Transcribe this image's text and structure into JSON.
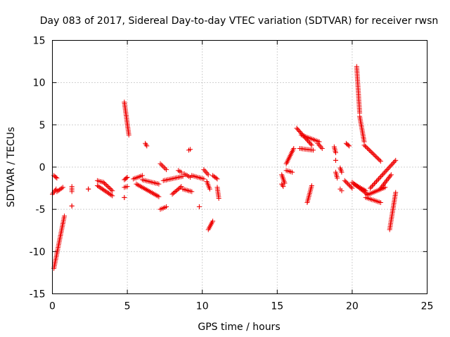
{
  "chart_data": {
    "type": "scatter",
    "title": "Day 083 of 2017, Sidereal Day-to-day VTEC variation (SDTVAR) for receiver rwsn",
    "xlabel": "GPS time / hours",
    "ylabel": "SDTVAR / TECUs",
    "xlim": [
      0,
      25
    ],
    "ylim": [
      -15,
      15
    ],
    "x_ticks": [
      0,
      5,
      10,
      15,
      20,
      25
    ],
    "y_ticks": [
      -15,
      -10,
      -5,
      0,
      5,
      10,
      15
    ],
    "x_tick_labels": [
      "0",
      "5",
      "10",
      "15",
      "20",
      "25"
    ],
    "y_tick_labels": [
      "-15",
      "-10",
      "-5",
      "0",
      "5",
      "10",
      "15"
    ],
    "grid": true,
    "marker": "+",
    "series_color": "#ee0000",
    "segments": [
      {
        "x0": 0.0,
        "x1": 0.25,
        "y0": -3.2,
        "y1": -2.6
      },
      {
        "x0": 0.1,
        "x1": 0.3,
        "y0": -1.0,
        "y1": -1.3
      },
      {
        "x0": 0.1,
        "x1": 0.8,
        "y0": -12.0,
        "y1": -5.8
      },
      {
        "x0": 0.3,
        "x1": 0.7,
        "y0": -2.9,
        "y1": -2.4
      },
      {
        "x0": 1.3,
        "x1": 1.3,
        "y0": -2.3,
        "y1": -2.9
      },
      {
        "x0": 1.3,
        "x1": 1.3,
        "y0": -4.6,
        "y1": -4.6
      },
      {
        "x0": 2.4,
        "x1": 2.4,
        "y0": -2.6,
        "y1": -2.6
      },
      {
        "x0": 3.0,
        "x1": 3.4,
        "y0": -1.6,
        "y1": -1.8
      },
      {
        "x0": 3.0,
        "x1": 4.0,
        "y0": -2.2,
        "y1": -3.4
      },
      {
        "x0": 3.4,
        "x1": 4.0,
        "y0": -1.8,
        "y1": -2.8
      },
      {
        "x0": 4.8,
        "x1": 5.0,
        "y0": -1.5,
        "y1": -1.2
      },
      {
        "x0": 4.8,
        "x1": 5.0,
        "y0": -2.4,
        "y1": -2.3
      },
      {
        "x0": 4.8,
        "x1": 4.8,
        "y0": -3.6,
        "y1": -3.6
      },
      {
        "x0": 4.8,
        "x1": 5.1,
        "y0": 7.7,
        "y1": 3.8
      },
      {
        "x0": 5.4,
        "x1": 6.0,
        "y0": -1.4,
        "y1": -1.0
      },
      {
        "x0": 5.6,
        "x1": 7.1,
        "y0": -2.0,
        "y1": -3.5
      },
      {
        "x0": 6.0,
        "x1": 7.1,
        "y0": -1.5,
        "y1": -2.0
      },
      {
        "x0": 6.2,
        "x1": 6.3,
        "y0": 2.8,
        "y1": 2.5
      },
      {
        "x0": 7.2,
        "x1": 7.6,
        "y0": 0.4,
        "y1": -0.3
      },
      {
        "x0": 7.2,
        "x1": 7.6,
        "y0": -5.0,
        "y1": -4.7
      },
      {
        "x0": 7.4,
        "x1": 8.7,
        "y0": -1.6,
        "y1": -1.1
      },
      {
        "x0": 8.0,
        "x1": 8.6,
        "y0": -3.2,
        "y1": -2.3
      },
      {
        "x0": 8.4,
        "x1": 8.6,
        "y0": -0.4,
        "y1": -0.6
      },
      {
        "x0": 8.7,
        "x1": 9.3,
        "y0": -2.6,
        "y1": -2.9
      },
      {
        "x0": 8.8,
        "x1": 9.2,
        "y0": -0.8,
        "y1": -1.2
      },
      {
        "x0": 9.1,
        "x1": 9.2,
        "y0": 2.0,
        "y1": 2.1
      },
      {
        "x0": 9.3,
        "x1": 10.1,
        "y0": -1.0,
        "y1": -1.4
      },
      {
        "x0": 9.8,
        "x1": 9.8,
        "y0": -4.7,
        "y1": -4.7
      },
      {
        "x0": 10.1,
        "x1": 10.4,
        "y0": -0.3,
        "y1": -0.9
      },
      {
        "x0": 10.3,
        "x1": 10.5,
        "y0": -1.7,
        "y1": -2.6
      },
      {
        "x0": 10.4,
        "x1": 10.7,
        "y0": -7.4,
        "y1": -6.4
      },
      {
        "x0": 10.7,
        "x1": 11.0,
        "y0": -1.0,
        "y1": -1.4
      },
      {
        "x0": 11.0,
        "x1": 11.1,
        "y0": -2.4,
        "y1": -3.7
      },
      {
        "x0": 15.3,
        "x1": 15.5,
        "y0": -0.9,
        "y1": -1.9
      },
      {
        "x0": 15.3,
        "x1": 15.4,
        "y0": -2.0,
        "y1": -2.3
      },
      {
        "x0": 15.6,
        "x1": 16.1,
        "y0": 0.4,
        "y1": 2.2
      },
      {
        "x0": 15.6,
        "x1": 16.0,
        "y0": -0.4,
        "y1": -0.6
      },
      {
        "x0": 16.3,
        "x1": 17.3,
        "y0": 4.6,
        "y1": 2.6
      },
      {
        "x0": 16.6,
        "x1": 17.8,
        "y0": 3.8,
        "y1": 3.0
      },
      {
        "x0": 16.5,
        "x1": 17.4,
        "y0": 2.2,
        "y1": 2.0
      },
      {
        "x0": 17.0,
        "x1": 17.3,
        "y0": -4.2,
        "y1": -2.2
      },
      {
        "x0": 17.7,
        "x1": 18.0,
        "y0": 2.8,
        "y1": 2.2
      },
      {
        "x0": 18.8,
        "x1": 18.9,
        "y0": 2.4,
        "y1": 1.7
      },
      {
        "x0": 18.9,
        "x1": 18.9,
        "y0": 0.8,
        "y1": 0.8
      },
      {
        "x0": 18.9,
        "x1": 19.0,
        "y0": -0.6,
        "y1": -1.3
      },
      {
        "x0": 19.2,
        "x1": 19.3,
        "y0": -0.1,
        "y1": -0.6
      },
      {
        "x0": 19.2,
        "x1": 19.3,
        "y0": -2.6,
        "y1": -2.8
      },
      {
        "x0": 19.5,
        "x1": 20.0,
        "y0": -1.6,
        "y1": -2.5
      },
      {
        "x0": 19.6,
        "x1": 19.8,
        "y0": 2.8,
        "y1": 2.5
      },
      {
        "x0": 20.1,
        "x1": 20.9,
        "y0": -2.0,
        "y1": -2.8
      },
      {
        "x0": 20.3,
        "x1": 20.5,
        "y0": 11.9,
        "y1": 6.4
      },
      {
        "x0": 20.5,
        "x1": 20.8,
        "y0": 6.0,
        "y1": 3.0
      },
      {
        "x0": 20.8,
        "x1": 21.9,
        "y0": 2.6,
        "y1": 0.7
      },
      {
        "x0": 20.0,
        "x1": 21.0,
        "y0": -1.8,
        "y1": -3.2
      },
      {
        "x0": 21.0,
        "x1": 22.2,
        "y0": -3.3,
        "y1": -2.4
      },
      {
        "x0": 20.9,
        "x1": 21.9,
        "y0": -3.6,
        "y1": -4.2
      },
      {
        "x0": 21.2,
        "x1": 22.9,
        "y0": -2.5,
        "y1": 0.8
      },
      {
        "x0": 21.9,
        "x1": 22.6,
        "y0": -2.5,
        "y1": -0.9
      },
      {
        "x0": 22.5,
        "x1": 22.9,
        "y0": -7.4,
        "y1": -3.0
      }
    ]
  }
}
